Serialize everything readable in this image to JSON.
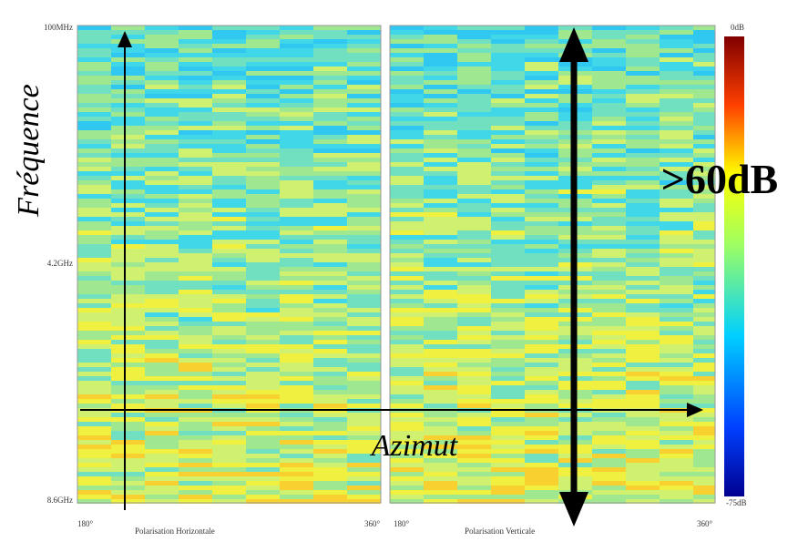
{
  "figure": {
    "frequency_labels": [
      "100MHz",
      "4.2GHz",
      "8.6GHz"
    ],
    "panels": [
      {
        "title": "Polarisation Horizontale",
        "start": "180°",
        "end": "360°"
      },
      {
        "title": "Polarisation Verticale",
        "start": "180°",
        "end": "360°"
      }
    ],
    "colorbar": {
      "max_label": "0dB",
      "min_label": "-75dB"
    },
    "annotations": {
      "frequency": "Fréquence",
      "azimuth": "Azimut",
      "dynamic": ">60dB"
    }
  }
}
